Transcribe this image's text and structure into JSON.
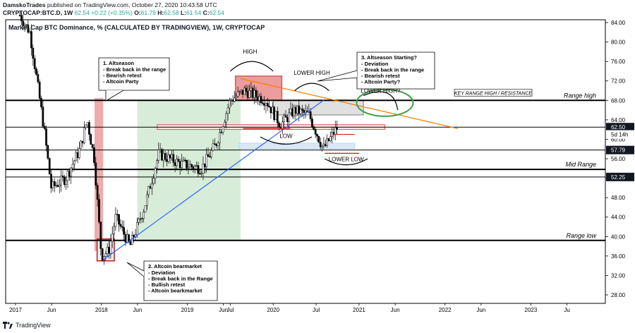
{
  "header": {
    "line1_author": "DamskoTrades",
    "line1_rest": " published on TradingView.com, October 27, 2020 10:43:58 UTC",
    "symbol": "CRYPTOCAP:BTC.D, 1W",
    "last": "62.54",
    "change": "+0.22 (+0.35%)",
    "o_label": "O:",
    "o": "61.79",
    "h_label": "H:",
    "h": "62.58",
    "l_label": "L:",
    "l": "61.54",
    "c_label": "C:",
    "c": "62.54"
  },
  "chart_title": "Market Cap BTC Dominance, % (CALCULATED BY TRADINGVIEW), 1W, CRYPTOCAP",
  "footer": {
    "brand": "TradingView"
  },
  "colors": {
    "up": "#26a69a",
    "down": "#ef5350",
    "candle": "#000000",
    "trendline": "#2962ff",
    "resistance_line": "#f57c00",
    "green_zone": "#c8e6c9",
    "red_zone": "#e57373",
    "circle": "#43a047"
  },
  "chart_data": {
    "type": "candlestick",
    "title": "Market Cap BTC Dominance, % (CALCULATED BY TRADINGVIEW), 1W, CRYPTOCAP",
    "x_ticks": [
      "2017",
      "Jun",
      "2018",
      "Jun",
      "2019",
      "Jun",
      "Jul",
      "2020",
      "Jul",
      "2021",
      "Jun",
      "2022",
      "Jun",
      "2023",
      "Ju"
    ],
    "y_ticks": [
      "84.00",
      "80.00",
      "76.00",
      "72.00",
      "68.00",
      "64.00",
      "60.00",
      "56.00",
      "52.00",
      "48.00",
      "44.00",
      "40.00",
      "36.00",
      "32.00",
      "28.00"
    ],
    "ylim": [
      26,
      86
    ],
    "price_labels": [
      {
        "text": "62.50",
        "value": 62.5,
        "style": "dark"
      },
      {
        "text": "5d 14h",
        "value": 61.0,
        "style": "plain"
      },
      {
        "text": "57.79",
        "value": 57.79,
        "style": "dark"
      },
      {
        "text": "52.25",
        "value": 52.25,
        "style": "dark"
      }
    ],
    "levels": [
      {
        "name": "Range high",
        "value": 68.0
      },
      {
        "name": "Mid Range",
        "value": 53.8
      },
      {
        "name": "",
        "value": 57.79
      },
      {
        "name": "",
        "value": 52.25
      },
      {
        "name": "Range low",
        "value": 39.2
      },
      {
        "name": "",
        "value": 62.5
      }
    ],
    "series": [
      {
        "name": "BTC.D",
        "weekly_close_approx": [
          {
            "date": "2017-01",
            "value": 87.0
          },
          {
            "date": "2017-03",
            "value": 82.0
          },
          {
            "date": "2017-05",
            "value": 62.0
          },
          {
            "date": "2017-06",
            "value": 50.0
          },
          {
            "date": "2017-08",
            "value": 52.0
          },
          {
            "date": "2017-10",
            "value": 58.0
          },
          {
            "date": "2017-11",
            "value": 64.0
          },
          {
            "date": "2017-12",
            "value": 56.0
          },
          {
            "date": "2018-01",
            "value": 36.0
          },
          {
            "date": "2018-02",
            "value": 37.0
          },
          {
            "date": "2018-03",
            "value": 44.0
          },
          {
            "date": "2018-05",
            "value": 38.0
          },
          {
            "date": "2018-07",
            "value": 46.0
          },
          {
            "date": "2018-09",
            "value": 57.0
          },
          {
            "date": "2018-12",
            "value": 55.0
          },
          {
            "date": "2019-03",
            "value": 54.0
          },
          {
            "date": "2019-05",
            "value": 59.0
          },
          {
            "date": "2019-07",
            "value": 68.0
          },
          {
            "date": "2019-09",
            "value": 70.0
          },
          {
            "date": "2019-12",
            "value": 68.0
          },
          {
            "date": "2020-02",
            "value": 63.0
          },
          {
            "date": "2020-04",
            "value": 66.0
          },
          {
            "date": "2020-06",
            "value": 65.0
          },
          {
            "date": "2020-08",
            "value": 58.0
          },
          {
            "date": "2020-10",
            "value": 62.54
          }
        ]
      }
    ],
    "annotations": [
      {
        "id": "note1",
        "title": "1. Altseason",
        "lines": [
          "- Break back in the range",
          "- Bearish retest",
          "- Altcoin Party"
        ]
      },
      {
        "id": "note2",
        "title": "2. Altcoin bearmarket",
        "lines": [
          "- Deviation",
          "- Break back in the Range",
          "- Bullish retest",
          "- Altcoin bearkmarket"
        ]
      },
      {
        "id": "note3",
        "title": "3. Altseason Starting?",
        "lines": [
          "- Deviation",
          "- Break back in the range",
          "- Bearish retest",
          "- Altcoin Party?"
        ]
      },
      {
        "id": "high",
        "title": "HIGH",
        "lines": []
      },
      {
        "id": "lower_high",
        "title": "LOWER HIGH",
        "lines": []
      },
      {
        "id": "low",
        "title": "LOW",
        "lines": []
      },
      {
        "id": "lower_low",
        "title": "LOWER LOW",
        "lines": []
      },
      {
        "id": "lower_high_q",
        "title": "LOWER HIGH?",
        "lines": []
      },
      {
        "id": "key_range",
        "title": "KEY RANGE HIGH / RESISTANCE",
        "lines": []
      }
    ],
    "grid": false,
    "legend": "none"
  }
}
